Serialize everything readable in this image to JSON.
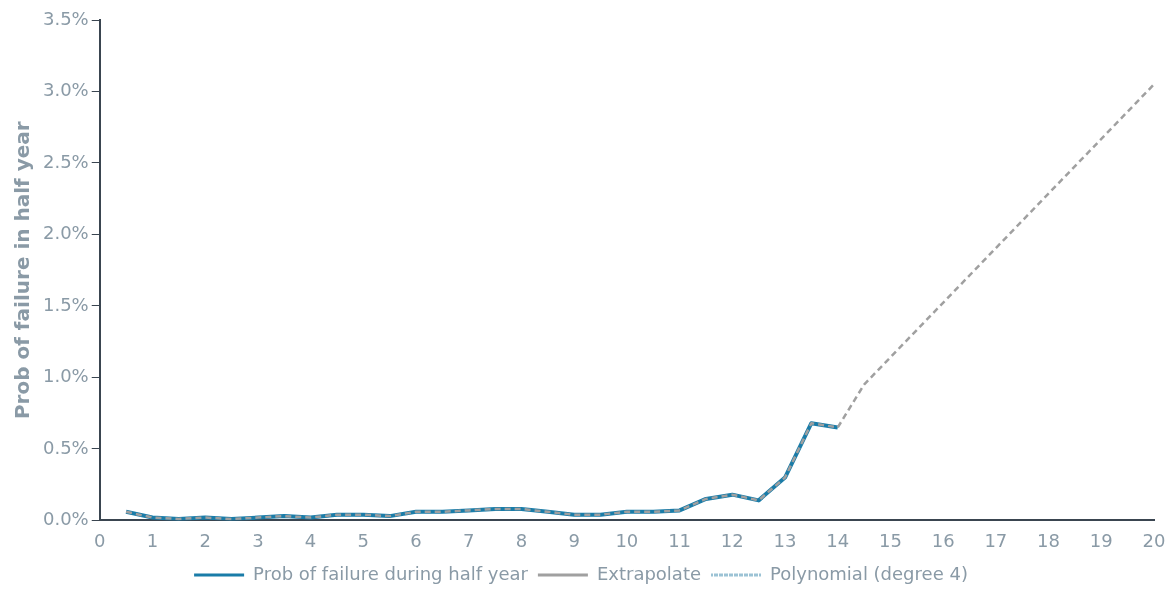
{
  "chart_data": {
    "type": "line",
    "ylabel": "Prob of failure in half year",
    "legend": "bottom",
    "grid": false,
    "marker": "none",
    "xlim": [
      0,
      20
    ],
    "xticks": [
      0,
      1,
      2,
      3,
      4,
      5,
      6,
      7,
      8,
      9,
      10,
      11,
      12,
      13,
      14,
      15,
      16,
      17,
      18,
      19,
      20
    ],
    "ylim": [
      0,
      3.5
    ],
    "yticks": [
      {
        "value": 0,
        "label": "0.0%"
      },
      {
        "value": 0.5,
        "label": "0.5%"
      },
      {
        "value": 1,
        "label": "1.0%"
      },
      {
        "value": 1.5,
        "label": "1.5%"
      },
      {
        "value": 2,
        "label": "2.0%"
      },
      {
        "value": 2.5,
        "label": "2.5%"
      },
      {
        "value": 3,
        "label": "3.0%"
      },
      {
        "value": 3.5,
        "label": "3.5%"
      }
    ],
    "series": [
      {
        "name": "Prob of failure during half year",
        "color": "#1a7ca8",
        "line_style": "solid",
        "x": [
          0.5,
          1,
          1.5,
          2,
          2.5,
          3,
          3.5,
          4,
          4.5,
          5,
          5.5,
          6,
          6.5,
          7,
          7.5,
          8,
          8.5,
          9,
          9.5,
          10,
          10.5,
          11,
          11.5,
          12,
          12.5,
          13,
          13.5,
          14
        ],
        "values": [
          0.06,
          0.02,
          0.01,
          0.02,
          0.01,
          0.02,
          0.03,
          0.02,
          0.04,
          0.04,
          0.03,
          0.06,
          0.06,
          0.07,
          0.08,
          0.08,
          0.06,
          0.04,
          0.04,
          0.06,
          0.06,
          0.07,
          0.15,
          0.18,
          0.14,
          0.3,
          0.68,
          0.65
        ]
      },
      {
        "name": "Extrapolate",
        "color": "#a0a0a0",
        "line_style": "dashed",
        "x": [
          0.5,
          1,
          1.5,
          2,
          2.5,
          3,
          3.5,
          4,
          4.5,
          5,
          5.5,
          6,
          6.5,
          7,
          7.5,
          8,
          8.5,
          9,
          9.5,
          10,
          10.5,
          11,
          11.5,
          12,
          12.5,
          13,
          13.5,
          14,
          14.5,
          20
        ],
        "values": [
          0.06,
          0.02,
          0.01,
          0.02,
          0.01,
          0.02,
          0.03,
          0.02,
          0.04,
          0.04,
          0.03,
          0.06,
          0.06,
          0.07,
          0.08,
          0.08,
          0.06,
          0.04,
          0.04,
          0.06,
          0.06,
          0.07,
          0.15,
          0.18,
          0.14,
          0.3,
          0.68,
          0.65,
          0.95,
          3.05
        ]
      },
      {
        "name": "Polynomial (degree 4)",
        "color": "#9cc3d5",
        "line_style": "dotted"
      }
    ]
  }
}
